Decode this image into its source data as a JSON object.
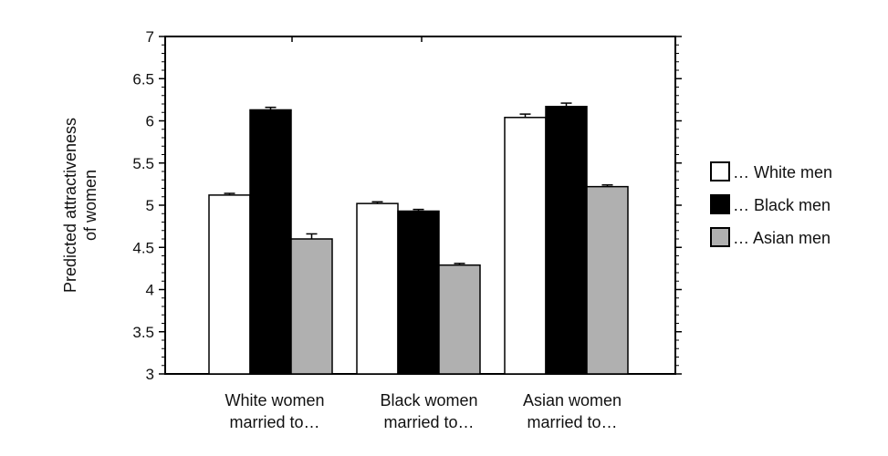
{
  "chart_data": {
    "type": "bar",
    "ylabel_lines": [
      "Predicted attractiveness",
      "of women"
    ],
    "ylim": [
      3,
      7
    ],
    "yticks": [
      "3",
      "3.5",
      "4",
      "4.5",
      "5",
      "5.5",
      "6",
      "6.5",
      "7"
    ],
    "categories": [
      [
        "White women",
        "married to…"
      ],
      [
        "Black women",
        "married to…"
      ],
      [
        "Asian women",
        "married to…"
      ]
    ],
    "series": [
      {
        "name": "… White men",
        "color": "#ffffff",
        "values": [
          5.12,
          5.02,
          6.04
        ],
        "errors": [
          0.02,
          0.02,
          0.04
        ]
      },
      {
        "name": "… Black men",
        "color": "#000000",
        "values": [
          6.13,
          4.93,
          6.17
        ],
        "errors": [
          0.03,
          0.02,
          0.04
        ]
      },
      {
        "name": "… Asian men",
        "color": "#b0b0b0",
        "values": [
          4.6,
          4.29,
          5.22
        ],
        "errors": [
          0.06,
          0.02,
          0.02
        ]
      }
    ],
    "legend_position": "right",
    "grid": false
  }
}
